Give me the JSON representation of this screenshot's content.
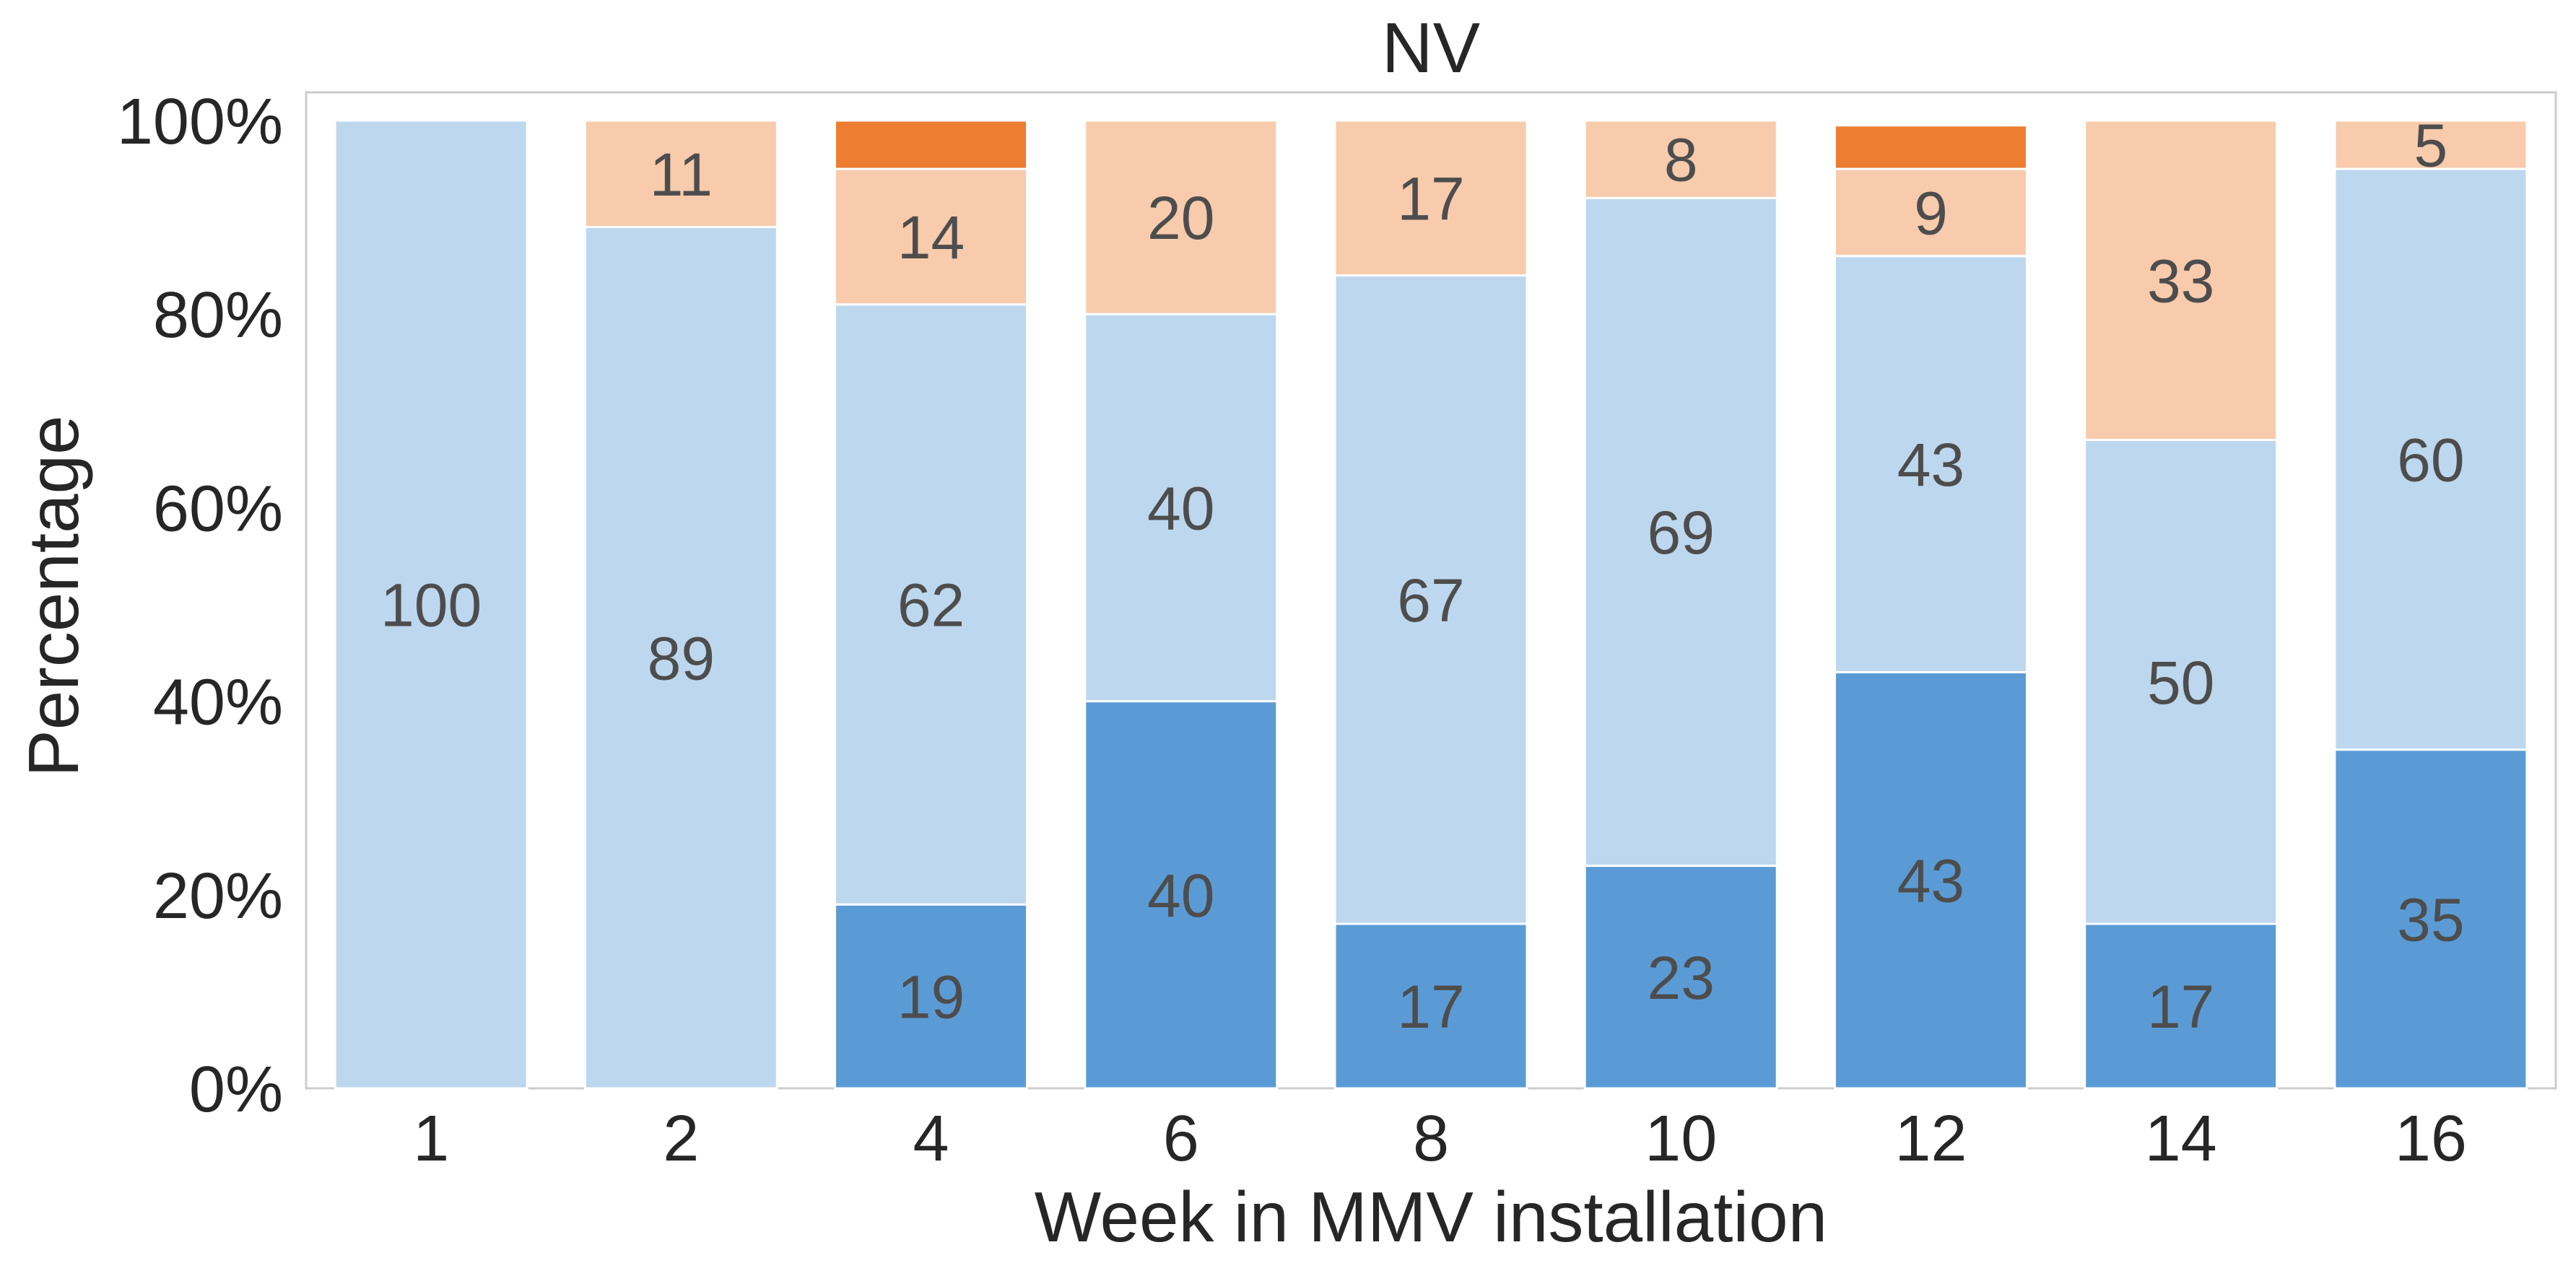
{
  "chart_data": {
    "type": "bar",
    "stacked": true,
    "normalized": true,
    "title": "NV",
    "xlabel": "Week in MMV installation",
    "ylabel": "Percentage",
    "categories": [
      "1",
      "2",
      "4",
      "6",
      "8",
      "10",
      "12",
      "14",
      "16"
    ],
    "yticks": [
      "0%",
      "20%",
      "40%",
      "60%",
      "80%",
      "100%"
    ],
    "ylim": [
      0,
      100
    ],
    "grid": false,
    "series": [
      {
        "color": "#5b9bd5",
        "values": [
          0,
          0,
          19,
          40,
          17,
          23,
          43,
          17,
          35
        ],
        "labels": [
          "",
          "",
          "19",
          "40",
          "17",
          "23",
          "43",
          "17",
          "35"
        ]
      },
      {
        "color": "#bdd7ee",
        "values": [
          100,
          89,
          62,
          40,
          67,
          69,
          43,
          50,
          60
        ],
        "labels": [
          "100",
          "89",
          "62",
          "40",
          "67",
          "69",
          "43",
          "50",
          "60"
        ]
      },
      {
        "color": "#f8cbad",
        "values": [
          0,
          11,
          14,
          20,
          17,
          8,
          9,
          33,
          5
        ],
        "labels": [
          "",
          "11",
          "14",
          "20",
          "17",
          "8",
          "9",
          "33",
          "5"
        ]
      },
      {
        "color": "#ed7d31",
        "values": [
          0,
          0,
          5,
          0,
          0,
          0,
          4.5,
          0,
          0
        ],
        "labels": [
          "",
          "",
          "",
          "",
          "",
          "",
          "",
          "",
          ""
        ]
      }
    ]
  }
}
